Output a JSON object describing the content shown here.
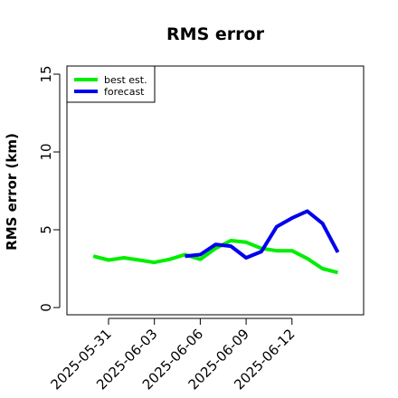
{
  "chart_data": {
    "type": "line",
    "title": "RMS error",
    "xlabel": "",
    "ylabel": "RMS error (km)",
    "ylim": [
      0,
      15
    ],
    "yticks": [
      0,
      5,
      10,
      15
    ],
    "xticks": [
      "2025-05-31",
      "2025-06-03",
      "2025-06-06",
      "2025-06-09",
      "2025-06-12"
    ],
    "grid": false,
    "legend_position": "top-left",
    "series": [
      {
        "name": "best est.",
        "color": "#00ee00",
        "x": [
          "2025-05-30",
          "2025-05-31",
          "2025-06-01",
          "2025-06-02",
          "2025-06-03",
          "2025-06-04",
          "2025-06-05",
          "2025-06-06",
          "2025-06-07",
          "2025-06-08",
          "2025-06-09",
          "2025-06-10",
          "2025-06-11",
          "2025-06-12",
          "2025-06-13",
          "2025-06-14",
          "2025-06-15"
        ],
        "y": [
          3.3,
          3.05,
          3.2,
          3.05,
          2.9,
          3.1,
          3.4,
          3.1,
          3.8,
          4.3,
          4.2,
          3.8,
          3.65,
          3.65,
          3.15,
          2.5,
          2.25
        ]
      },
      {
        "name": "forecast",
        "color": "#0000ee",
        "x": [
          "2025-06-05",
          "2025-06-06",
          "2025-06-07",
          "2025-06-08",
          "2025-06-09",
          "2025-06-10",
          "2025-06-11",
          "2025-06-12",
          "2025-06-13",
          "2025-06-14",
          "2025-06-15"
        ],
        "y": [
          3.3,
          3.4,
          4.05,
          3.95,
          3.2,
          3.6,
          5.2,
          5.75,
          6.2,
          5.4,
          3.55
        ]
      }
    ]
  }
}
